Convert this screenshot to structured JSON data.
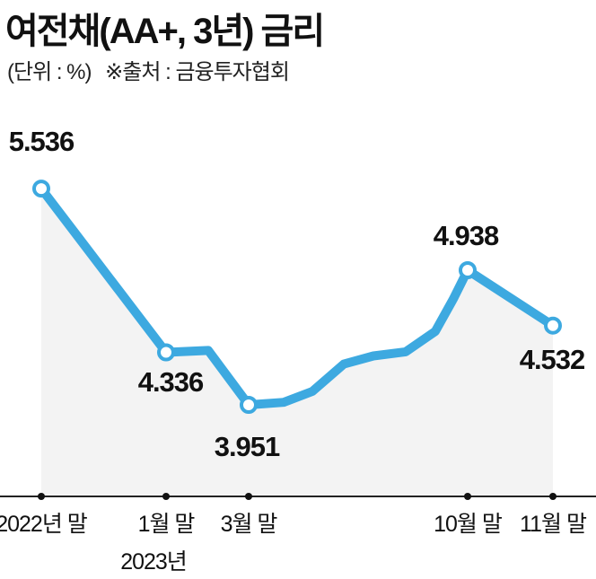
{
  "title": "여전채(AA+, 3년) 금리",
  "unit_note": "(단위 : %)",
  "source_note": "※출처 : 금융투자협회",
  "colors": {
    "line": "#3da9e0",
    "area": "#f3f3f3",
    "axis": "#222222"
  },
  "chart_data": {
    "type": "line",
    "title": "여전채(AA+, 3년) 금리",
    "x": [
      0,
      1,
      2,
      3,
      4,
      5,
      6,
      7,
      8,
      9,
      10,
      11,
      12
    ],
    "values": [
      5.536,
      4.336,
      4.35,
      3.951,
      3.97,
      4.05,
      4.25,
      4.31,
      4.34,
      4.49,
      4.727,
      4.938,
      4.532
    ],
    "ylim": [
      3.3,
      5.8
    ],
    "grid": false,
    "labeled_points": [
      {
        "index": 0,
        "label": "5.536"
      },
      {
        "index": 1,
        "label": "4.336"
      },
      {
        "index": 3,
        "label": "3.951"
      },
      {
        "index": 11,
        "label": "4.938"
      },
      {
        "index": 12,
        "label": "4.532"
      }
    ],
    "x_ticks": [
      {
        "index": 0,
        "label": "2022년 말"
      },
      {
        "index": 1,
        "label": "1월 말"
      },
      {
        "index": 3,
        "label": "3월 말"
      },
      {
        "index": 11,
        "label": "10월 말"
      },
      {
        "index": 12,
        "label": "11월 말"
      }
    ],
    "x_sublabel": {
      "index": 1,
      "label": "2023년"
    }
  }
}
